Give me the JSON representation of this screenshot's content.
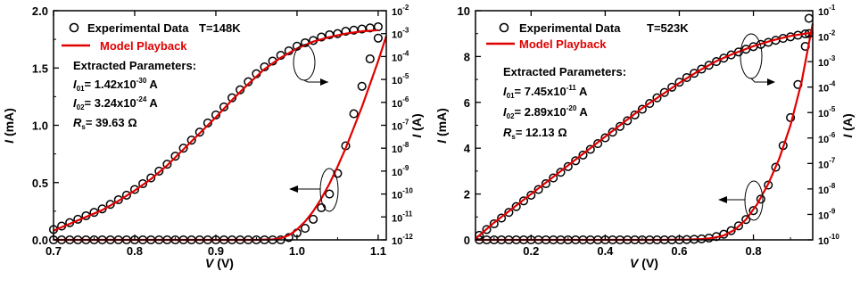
{
  "figure_panels": [
    {
      "legend_data": "Experimental Data",
      "legend_temp": "T=148K",
      "legend_model": "Model Playback",
      "params_title": "Extracted Parameters:",
      "param1": "I01= 1.42x10-30 A",
      "param2": "I02= 3.24x10-24 A",
      "param3": "Rs= 39.63 Ω",
      "xlabel": "V (V)",
      "ylabel_left": "I (mA)",
      "ylabel_right": "I (A)"
    },
    {
      "legend_data": "Experimental Data",
      "legend_temp": "T=523K",
      "legend_model": "Model Playback",
      "params_title": "Extracted Parameters:",
      "param1": "I01= 7.45x10-11 A",
      "param2": "I02= 2.89x10-20 A",
      "param3": "Rs= 12.13 Ω",
      "xlabel": "V (V)",
      "ylabel_left": "I (mA)",
      "ylabel_right": "I (A)"
    }
  ],
  "chart_data": [
    {
      "type": "scatter",
      "title": "",
      "xlabel": "V (V)",
      "ylabel": "I (mA)",
      "y2label": "I (A)",
      "xlim": [
        0.7,
        1.11
      ],
      "ylim": [
        0,
        2.0
      ],
      "y2lim_log10": [
        -12,
        -2
      ],
      "xticks": [
        "0.7",
        "0.8",
        "0.9",
        "1.0",
        "1.1"
      ],
      "yticks": [
        "0.0",
        "0.5",
        "1.0",
        "1.5",
        "2.0"
      ],
      "y2ticks": [
        {
          "base": "10",
          "exp": "-12"
        },
        {
          "base": "10",
          "exp": "-11"
        },
        {
          "base": "10",
          "exp": "-10"
        },
        {
          "base": "10",
          "exp": "-9"
        },
        {
          "base": "10",
          "exp": "-8"
        },
        {
          "base": "10",
          "exp": "-7"
        },
        {
          "base": "10",
          "exp": "-6"
        },
        {
          "base": "10",
          "exp": "-5"
        },
        {
          "base": "10",
          "exp": "-4"
        },
        {
          "base": "10",
          "exp": "-3"
        },
        {
          "base": "10",
          "exp": "-2"
        }
      ],
      "series": [
        {
          "name": "Experimental Data",
          "axis": "left",
          "style": "open-circle",
          "color": "#000000",
          "x": [
            0.7,
            0.71,
            0.72,
            0.73,
            0.74,
            0.75,
            0.76,
            0.77,
            0.78,
            0.79,
            0.8,
            0.81,
            0.82,
            0.83,
            0.84,
            0.85,
            0.86,
            0.87,
            0.88,
            0.89,
            0.9,
            0.91,
            0.92,
            0.93,
            0.94,
            0.95,
            0.96,
            0.97,
            0.98,
            0.99,
            1.0,
            1.01,
            1.02,
            1.03,
            1.04,
            1.05,
            1.06,
            1.07,
            1.08,
            1.09,
            1.1
          ],
          "y": [
            0.09,
            0.12,
            0.15,
            0.18,
            0.21,
            0.24,
            0.27,
            0.31,
            0.35,
            0.39,
            0.44,
            0.49,
            0.54,
            0.6,
            0.66,
            0.73,
            0.8,
            0.87,
            0.94,
            1.02,
            1.09,
            1.16,
            1.24,
            1.31,
            1.38,
            1.45,
            1.51,
            1.56,
            1.61,
            1.65,
            1.69,
            1.72,
            1.74,
            1.77,
            1.79,
            1.8,
            1.82,
            1.83,
            1.84,
            1.85,
            1.86
          ]
        },
        {
          "name": "Experimental Data",
          "axis": "right-log",
          "style": "open-circle",
          "color": "#000000",
          "x": [
            0.7,
            0.71,
            0.72,
            0.73,
            0.74,
            0.75,
            0.76,
            0.77,
            0.78,
            0.79,
            0.8,
            0.81,
            0.82,
            0.83,
            0.84,
            0.85,
            0.86,
            0.87,
            0.88,
            0.89,
            0.9,
            0.91,
            0.92,
            0.93,
            0.94,
            0.95,
            0.96,
            0.97,
            0.98,
            0.99,
            1.0,
            1.01,
            1.02,
            1.03,
            1.04,
            1.05,
            1.06,
            1.07,
            1.08,
            1.09,
            1.1
          ],
          "log10_y": [
            -12,
            -12,
            -12,
            -12,
            -12,
            -12,
            -12,
            -12,
            -12,
            -12,
            -12,
            -12,
            -12,
            -12,
            -12,
            -12,
            -12,
            -12,
            -12,
            -12,
            -12,
            -12,
            -12,
            -12,
            -12,
            -12,
            -12,
            -12,
            -12,
            -11.9,
            -11.7,
            -11.5,
            -11.1,
            -10.6,
            -10.0,
            -9.1,
            -7.9,
            -6.5,
            -5.3,
            -4.1,
            -3.2
          ]
        },
        {
          "name": "Model Playback",
          "axis": "left",
          "style": "line",
          "color": "#e00000",
          "x": [
            0.7,
            0.72,
            0.74,
            0.76,
            0.78,
            0.8,
            0.82,
            0.84,
            0.86,
            0.88,
            0.9,
            0.92,
            0.94,
            0.96,
            0.98,
            1.0,
            1.02,
            1.04,
            1.06,
            1.08,
            1.1
          ],
          "y": [
            0.08,
            0.14,
            0.2,
            0.26,
            0.34,
            0.43,
            0.53,
            0.65,
            0.79,
            0.93,
            1.07,
            1.22,
            1.36,
            1.49,
            1.59,
            1.67,
            1.73,
            1.77,
            1.8,
            1.82,
            1.83
          ]
        },
        {
          "name": "Model Playback",
          "axis": "right-log",
          "style": "line",
          "color": "#e00000",
          "x": [
            0.7,
            0.8,
            0.9,
            0.95,
            0.97,
            0.98,
            0.99,
            1.0,
            1.01,
            1.02,
            1.03,
            1.04,
            1.05,
            1.06,
            1.07,
            1.08,
            1.09,
            1.1,
            1.11
          ],
          "log10_y": [
            -12,
            -12,
            -12,
            -12,
            -11.98,
            -11.93,
            -11.8,
            -11.55,
            -11.2,
            -10.75,
            -10.2,
            -9.55,
            -8.8,
            -8.0,
            -7.1,
            -6.2,
            -5.2,
            -4.2,
            -3.1
          ]
        }
      ]
    },
    {
      "type": "scatter",
      "title": "",
      "xlabel": "V (V)",
      "ylabel": "I (mA)",
      "y2label": "I (A)",
      "xlim": [
        0.05,
        0.96
      ],
      "ylim": [
        0,
        10
      ],
      "y2lim_log10": [
        -10,
        -1
      ],
      "xticks": [
        "0.2",
        "0.4",
        "0.6",
        "0.8"
      ],
      "yticks": [
        "0",
        "2",
        "4",
        "6",
        "8",
        "10"
      ],
      "y2ticks": [
        {
          "base": "10",
          "exp": "-10"
        },
        {
          "base": "10",
          "exp": "-9"
        },
        {
          "base": "10",
          "exp": "-8"
        },
        {
          "base": "10",
          "exp": "-7"
        },
        {
          "base": "10",
          "exp": "-6"
        },
        {
          "base": "10",
          "exp": "-5"
        },
        {
          "base": "10",
          "exp": "-4"
        },
        {
          "base": "10",
          "exp": "-3"
        },
        {
          "base": "10",
          "exp": "-2"
        },
        {
          "base": "10",
          "exp": "-1"
        }
      ],
      "series": [
        {
          "name": "Experimental Data",
          "axis": "left",
          "style": "open-circle",
          "color": "#000000",
          "x": [
            0.06,
            0.08,
            0.1,
            0.12,
            0.14,
            0.16,
            0.18,
            0.2,
            0.22,
            0.24,
            0.26,
            0.28,
            0.3,
            0.32,
            0.34,
            0.36,
            0.38,
            0.4,
            0.42,
            0.44,
            0.46,
            0.48,
            0.5,
            0.52,
            0.54,
            0.56,
            0.58,
            0.6,
            0.62,
            0.64,
            0.66,
            0.68,
            0.7,
            0.72,
            0.74,
            0.76,
            0.78,
            0.8,
            0.82,
            0.84,
            0.86,
            0.88,
            0.9,
            0.92,
            0.94,
            0.95
          ],
          "y": [
            0.2,
            0.45,
            0.7,
            0.95,
            1.2,
            1.45,
            1.7,
            1.95,
            2.2,
            2.45,
            2.7,
            2.95,
            3.2,
            3.45,
            3.7,
            3.95,
            4.2,
            4.45,
            4.7,
            4.95,
            5.2,
            5.45,
            5.7,
            5.95,
            6.2,
            6.43,
            6.66,
            6.88,
            7.08,
            7.27,
            7.45,
            7.62,
            7.78,
            7.93,
            8.07,
            8.2,
            8.32,
            8.43,
            8.53,
            8.62,
            8.71,
            8.79,
            8.86,
            8.93,
            8.99,
            9.0
          ]
        },
        {
          "name": "Experimental Data",
          "axis": "right-log",
          "style": "open-circle",
          "color": "#000000",
          "x": [
            0.06,
            0.08,
            0.1,
            0.12,
            0.14,
            0.16,
            0.18,
            0.2,
            0.22,
            0.24,
            0.26,
            0.28,
            0.3,
            0.32,
            0.34,
            0.36,
            0.38,
            0.4,
            0.42,
            0.44,
            0.46,
            0.48,
            0.5,
            0.52,
            0.54,
            0.56,
            0.58,
            0.6,
            0.62,
            0.64,
            0.66,
            0.68,
            0.7,
            0.72,
            0.74,
            0.76,
            0.78,
            0.8,
            0.82,
            0.84,
            0.86,
            0.88,
            0.9,
            0.92,
            0.94,
            0.95
          ],
          "log10_y": [
            -10,
            -10,
            -10,
            -10,
            -10,
            -10,
            -10,
            -10,
            -10,
            -10,
            -10,
            -10,
            -10,
            -10,
            -10,
            -10,
            -10,
            -10,
            -10,
            -10,
            -10,
            -10,
            -10,
            -10,
            -10,
            -10,
            -10,
            -10,
            -9.99,
            -9.98,
            -9.96,
            -9.93,
            -9.87,
            -9.78,
            -9.64,
            -9.45,
            -9.2,
            -8.85,
            -8.4,
            -7.85,
            -7.15,
            -6.3,
            -5.2,
            -3.9,
            -2.4,
            -1.3
          ]
        },
        {
          "name": "Model Playback",
          "axis": "left",
          "style": "line",
          "color": "#e00000",
          "x": [
            0.05,
            0.1,
            0.2,
            0.3,
            0.4,
            0.5,
            0.6,
            0.65,
            0.7,
            0.75,
            0.8,
            0.85,
            0.9,
            0.96
          ],
          "y": [
            0.05,
            0.75,
            2.0,
            3.25,
            4.5,
            5.75,
            6.85,
            7.35,
            7.8,
            8.15,
            8.45,
            8.7,
            8.9,
            9.05
          ]
        },
        {
          "name": "Model Playback",
          "axis": "right-log",
          "style": "line",
          "color": "#e00000",
          "x": [
            0.05,
            0.3,
            0.55,
            0.62,
            0.66,
            0.69,
            0.72,
            0.75,
            0.78,
            0.81,
            0.84,
            0.87,
            0.9,
            0.93,
            0.96
          ],
          "log10_y": [
            -10,
            -10,
            -10,
            -9.99,
            -9.97,
            -9.93,
            -9.83,
            -9.6,
            -9.2,
            -8.6,
            -7.8,
            -6.8,
            -5.5,
            -3.8,
            -1.5
          ]
        }
      ]
    }
  ],
  "colors": {
    "model": "#e00000",
    "data": "#000000",
    "background": "#ffffff"
  }
}
